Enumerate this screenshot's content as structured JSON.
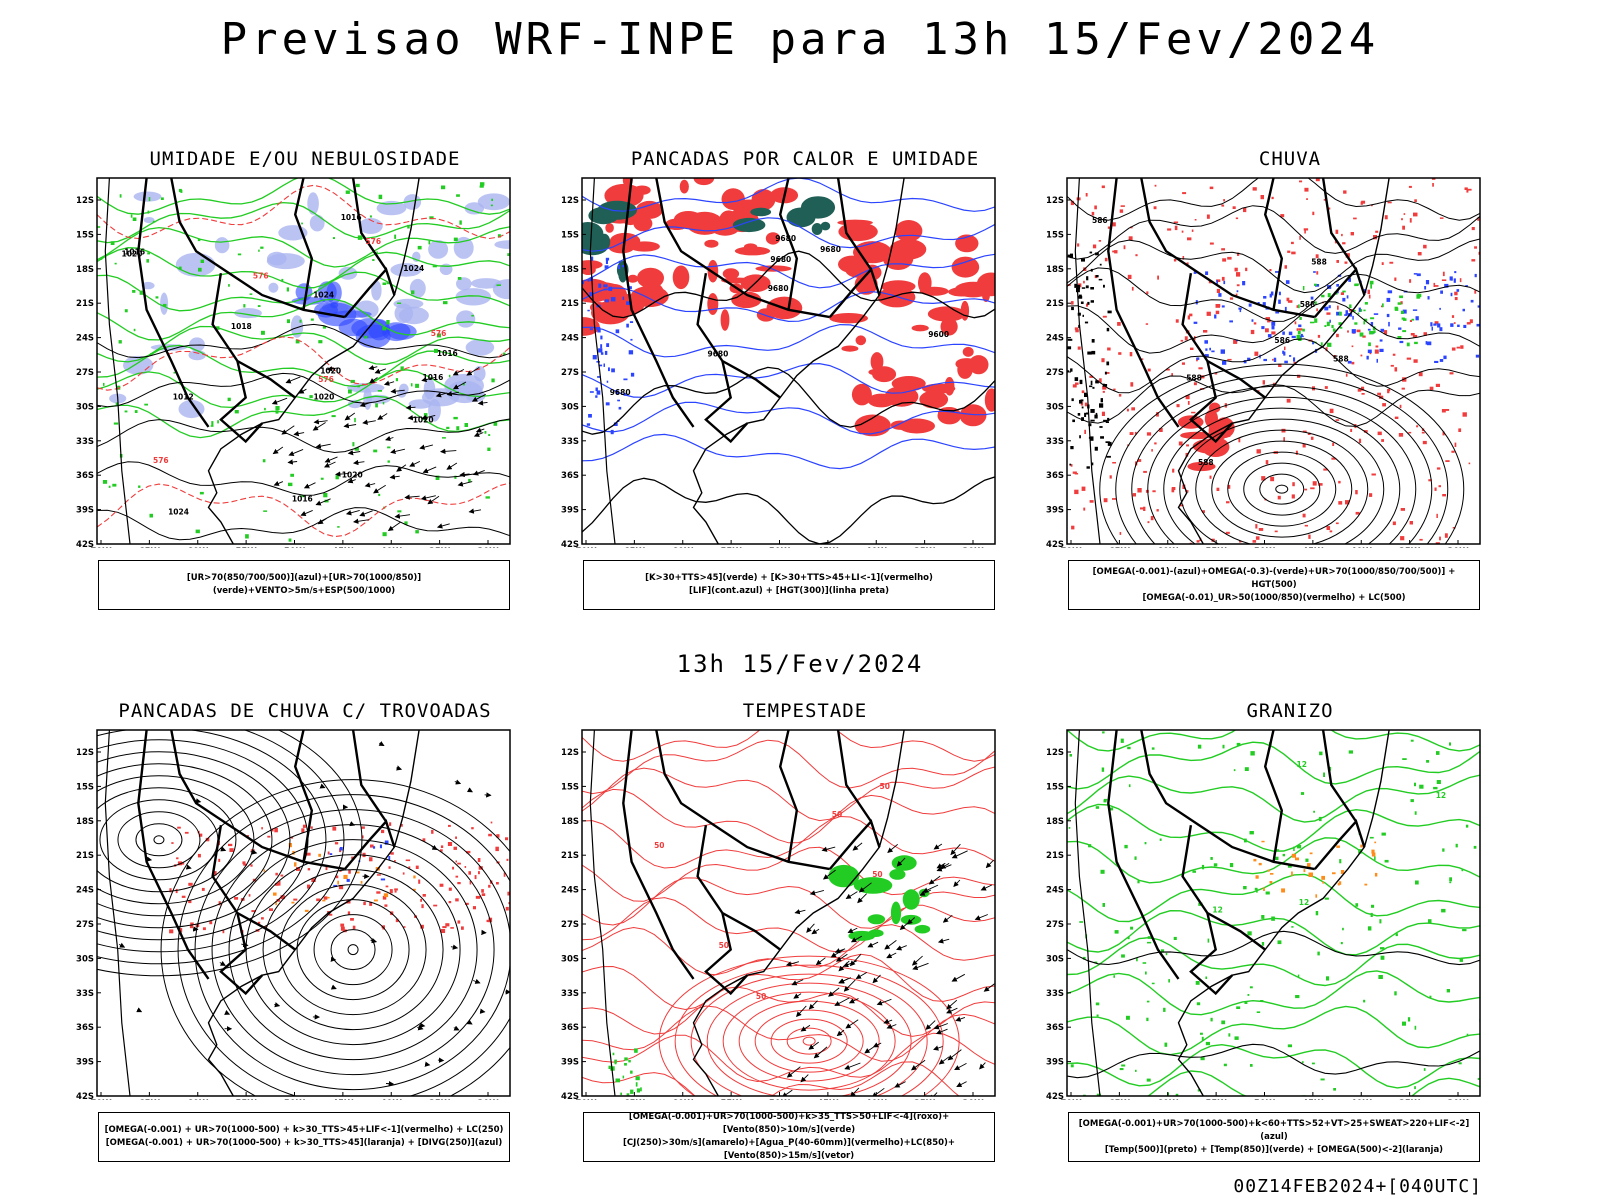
{
  "title": "Previsao WRF-INPE  para 13h 15/Fev/2024",
  "middle_label": "13h 15/Fev/2024",
  "footer": "00Z14FEB2024+[040UTC]",
  "axes": {
    "lat_labels": [
      "12S",
      "15S",
      "18S",
      "21S",
      "24S",
      "27S",
      "30S",
      "33S",
      "36S",
      "39S",
      "42S"
    ],
    "lon_labels": [
      "70W",
      "65W",
      "60W",
      "55W",
      "50W",
      "45W",
      "40W",
      "35W",
      "30W"
    ]
  },
  "colors": {
    "red": "#f03c3c",
    "green": "#22cc22",
    "blue": "#2b44ff",
    "lightblue": "#aab4f0",
    "teal": "#1f5f55",
    "orange": "#ff8c1a"
  },
  "panels": [
    {
      "title": "UMIDADE E/OU NEBULOSIDADE",
      "legend": [
        "[UR>70(850/700/500)](azul)+[UR>70(1000/850)](verde)+VENTO>5m/s+ESP(500/1000)"
      ],
      "labels": [
        "1020",
        "1016",
        "1020",
        "1020",
        "1016",
        "1012",
        "1016",
        "1024",
        "1018",
        "1020",
        "1024",
        "1016",
        "1016",
        "1020",
        "1024",
        "576",
        "576",
        "576",
        "576",
        "576"
      ]
    },
    {
      "title": "PANCADAS POR CALOR E UMIDADE",
      "legend": [
        "[K>30+TTS>45](verde) + [K>30+TTS>45+LI<-1](vermelho)",
        "[LIF](cont.azul) + [HGT(300)](linha preta)"
      ],
      "labels": [
        "9680",
        "9680",
        "9680",
        "9680",
        "9680",
        "9600",
        "9680"
      ]
    },
    {
      "title": "CHUVA",
      "legend": [
        "[OMEGA(-0.001)-(azul)+OMEGA(-0.3)-(verde)+UR>70(1000/850/700/500)] + HGT(500)",
        "[OMEGA(-0.01)_UR>50(1000/850)(vermelho) + LC(500)"
      ],
      "labels": [
        "588",
        "586",
        "588",
        "586",
        "588",
        "588",
        "588"
      ]
    },
    {
      "title": "PANCADAS DE CHUVA C/ TROVOADAS",
      "legend": [
        "[OMEGA(-0.001) + UR>70(1000-500) + k>30_TTS>45+LIF<-1](vermelho) + LC(250)",
        "[OMEGA(-0.001) + UR>70(1000-500) + k>30_TTS>45](laranja) + [DIVG(250)](azul)"
      ],
      "labels": []
    },
    {
      "title": "TEMPESTADE",
      "legend": [
        "[OMEGA(-0.001)+UR>70(1000-500)+k>35_TTS>50+LIF<-4](roxo)+[Vento(850)>10m/s](verde)",
        "[CJ(250)>30m/s](amarelo)+[Agua_P(40-60mm)](vermelho)+LC(850)+[Vento(850)>15m/s](vetor)"
      ],
      "labels": [
        "50",
        "50",
        "50",
        "50",
        "50",
        "50"
      ]
    },
    {
      "title": "GRANIZO",
      "legend": [
        "[OMEGA(-0.001)+UR>70(1000-500)+k<60+TTS>52+VT>25+SWEAT>220+LIF<-2](azul)",
        "[Temp(500)](preto) + [Temp(850)](verde) + [OMEGA(500)<-2](laranja)"
      ],
      "labels": [
        "12",
        "12",
        "12",
        "12"
      ]
    }
  ]
}
